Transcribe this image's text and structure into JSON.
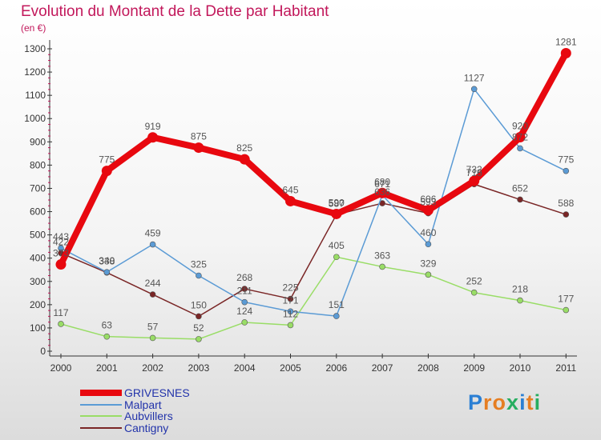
{
  "title": "Evolution du Montant de la Dette par Habitant",
  "unit": "(en €)",
  "logo": {
    "text": "Proxiti",
    "letters": [
      "P",
      "r",
      "o",
      "x",
      "i",
      "t",
      "i"
    ],
    "colors": [
      "#2a7fd4",
      "#e67e22",
      "#e67e22",
      "#27ae60",
      "#2a7fd4",
      "#e67e22",
      "#27ae60"
    ]
  },
  "chart_data": {
    "type": "line",
    "categories": [
      "2000",
      "2001",
      "2002",
      "2003",
      "2004",
      "2005",
      "2006",
      "2007",
      "2008",
      "2009",
      "2010",
      "2011"
    ],
    "ylim": [
      0,
      1300
    ],
    "yticks": [
      0,
      100,
      200,
      300,
      400,
      500,
      600,
      700,
      800,
      900,
      1000,
      1100,
      1200,
      1300
    ],
    "grid": false,
    "legend_position": "bottom-left",
    "series": [
      {
        "name": "GRIVESNES",
        "color": "#e8080f",
        "values": [
          373,
          775,
          919,
          875,
          825,
          645,
          590,
          680,
          606,
          732,
          920,
          1281
        ]
      },
      {
        "name": "Malpart",
        "color": "#5b9bd5",
        "values": [
          443,
          340,
          459,
          325,
          211,
          171,
          151,
          671,
          460,
          1127,
          872,
          775
        ]
      },
      {
        "name": "Aubvillers",
        "color": "#99dd66",
        "values": [
          117,
          63,
          57,
          52,
          124,
          112,
          405,
          363,
          329,
          252,
          218,
          177
        ]
      },
      {
        "name": "Cantigny",
        "color": "#7a2626",
        "values": [
          422,
          338,
          244,
          150,
          268,
          225,
          587,
          636,
          593,
          718,
          652,
          588
        ]
      }
    ]
  }
}
